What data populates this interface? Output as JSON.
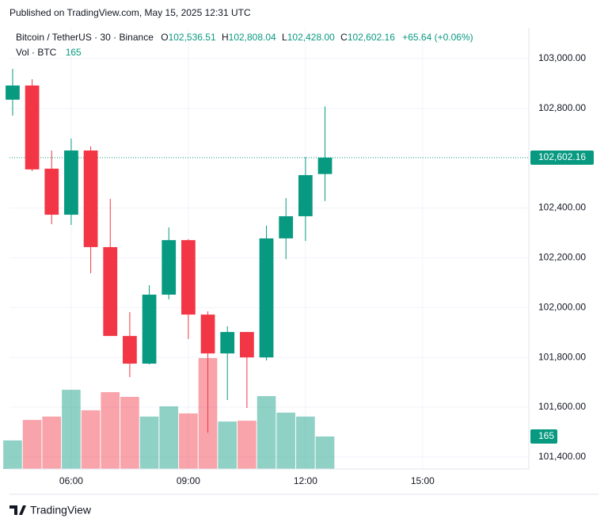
{
  "header": {
    "published": "Published on TradingView.com, May 15, 2025 12:31 UTC"
  },
  "legend": {
    "symbol": "Bitcoin / TetherUS · 30 · Binance",
    "open_label": "O",
    "open": "102,536.51",
    "high_label": "H",
    "high": "102,808.04",
    "low_label": "L",
    "low": "102,428.00",
    "close_label": "C",
    "close": "102,602.16",
    "change": "+65.64 (+0.06%)",
    "volume_label": "Vol · BTC",
    "volume": "165"
  },
  "chart_data": {
    "type": "candlestick",
    "x": [
      4.5,
      5,
      5.5,
      6,
      6.5,
      7,
      7.5,
      8,
      8.5,
      9,
      9.5,
      10,
      10.5,
      11,
      11.5,
      12,
      12.5
    ],
    "open": [
      102835,
      102892,
      102558,
      102373,
      102631,
      102243,
      101886,
      101775,
      102052,
      102271,
      101972,
      101816,
      101902,
      101800,
      102278,
      102367,
      102536.51
    ],
    "high": [
      102959,
      102917,
      102631,
      102679,
      102647,
      102437,
      101982,
      102090,
      102322,
      102275,
      101985,
      101925,
      101902,
      102329,
      102440,
      102605,
      102808.04
    ],
    "low": [
      102771,
      102548,
      102335,
      102332,
      102138,
      101886,
      101721,
      101772,
      102033,
      101874,
      101498,
      101629,
      101597,
      101788,
      102195,
      102268,
      102428.0
    ],
    "close": [
      102892,
      102555,
      102373,
      102631,
      102243,
      101886,
      101775,
      102052,
      102271,
      101972,
      101816,
      101902,
      101800,
      102278,
      102367,
      102532,
      102602.16
    ],
    "volume": [
      145,
      249,
      266,
      402,
      298,
      390,
      366,
      266,
      318,
      282,
      563,
      241,
      245,
      370,
      286,
      266,
      165
    ],
    "up_color": "#089981",
    "down_color": "#f23645",
    "xlim": [
      4.42,
      17.72
    ],
    "xticks": [
      {
        "value": 6,
        "label": "06:00"
      },
      {
        "value": 9,
        "label": "09:00"
      },
      {
        "value": 12,
        "label": "12:00"
      },
      {
        "value": 15,
        "label": "15:00"
      }
    ],
    "ylim": [
      101352,
      103124
    ],
    "yticks": [
      {
        "value": 101400,
        "label": "101,400.00"
      },
      {
        "value": 101600,
        "label": "101,600.00"
      },
      {
        "value": 101800,
        "label": "101,800.00"
      },
      {
        "value": 102000,
        "label": "102,000.00"
      },
      {
        "value": 102200,
        "label": "102,200.00"
      },
      {
        "value": 102400,
        "label": "102,400.00"
      },
      {
        "value": 102800,
        "label": "102,800.00"
      },
      {
        "value": 103000,
        "label": "103,000.00"
      }
    ],
    "grid": true,
    "price_label": "102,602.16",
    "volume_value_label": "165"
  },
  "footer": {
    "brand": "TradingView"
  }
}
